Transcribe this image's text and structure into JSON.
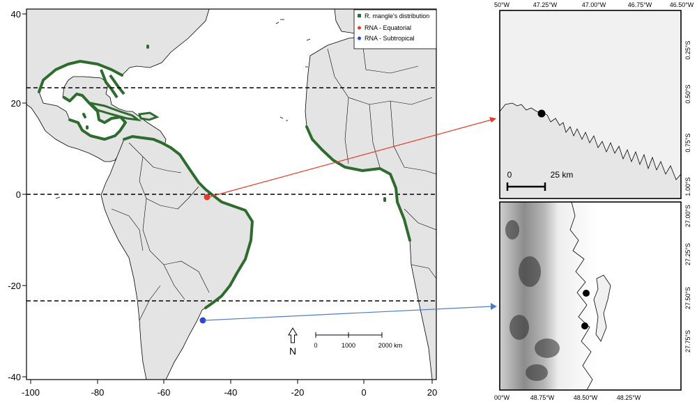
{
  "main_map": {
    "y_ticks": [
      "40",
      "20",
      "0",
      "-20",
      "-40"
    ],
    "x_ticks": [
      "-100",
      "-80",
      "-60",
      "-40",
      "-20",
      "0",
      "20"
    ],
    "legend": [
      {
        "label": "R. mangle's distribution",
        "color": "#2e6b2e"
      },
      {
        "label": "RNA - Equatorial",
        "color": "#e53b2c"
      },
      {
        "label": "RNA - Subtropical",
        "color": "#2b46d6"
      }
    ],
    "north_label": "N",
    "scale_ticks": [
      "0",
      "1000",
      "2000 km"
    ],
    "points": [
      {
        "name": "RNA - Equatorial",
        "lon": -47.5,
        "lat": -0.6
      },
      {
        "name": "RNA - Subtropical",
        "lon": -48.5,
        "lat": -27.5
      }
    ],
    "reference_lines_lat": [
      23.4,
      0,
      -23.4
    ]
  },
  "inset_top": {
    "top_ticks": [
      "50°W",
      "47.25°W",
      "47.00°W",
      "46.75°W",
      "46.50°W"
    ],
    "right_ticks": [
      "0.25°S",
      "0.50°S",
      "0.75°S",
      "1.00°S"
    ],
    "scale_ticks": [
      "0",
      "25 km"
    ]
  },
  "inset_bottom": {
    "right_ticks": [
      "27.00°S",
      "27.25°S",
      "27.50°S",
      "27.75°S"
    ],
    "bottom_ticks": [
      "00°W",
      "48.75°W",
      "48.50°W",
      "48.25°W"
    ]
  },
  "colors": {
    "land": "#e4e4e4",
    "border": "#000000",
    "mangrove": "#2e6b2e",
    "arrow_equatorial": "#e53b2c",
    "arrow_subtropical": "#4f7fc2"
  }
}
